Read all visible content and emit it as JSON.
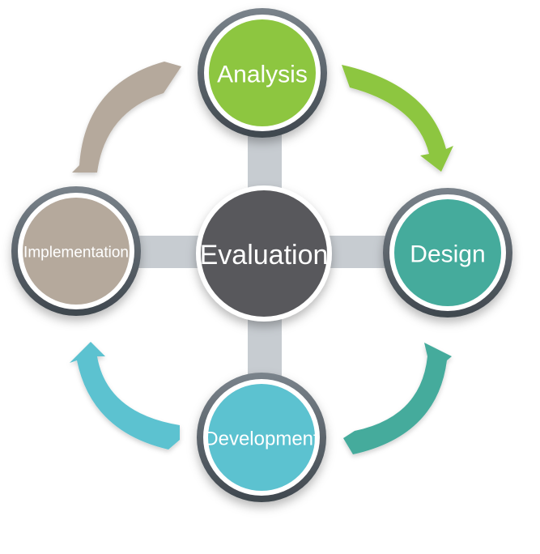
{
  "diagram": {
    "center": {
      "label": "Evaluation",
      "color": "#58595b"
    },
    "phases": [
      {
        "id": "analysis",
        "label": "Analysis",
        "color": "#8dc63f"
      },
      {
        "id": "design",
        "label": "Design",
        "color": "#44ab9c"
      },
      {
        "id": "development",
        "label": "Development",
        "color": "#5bc2d0"
      },
      {
        "id": "implementation",
        "label": "Implementation",
        "color": "#b5a99c"
      }
    ],
    "connector_color": "#c7ccd1",
    "ring_color": "#5d6770"
  }
}
